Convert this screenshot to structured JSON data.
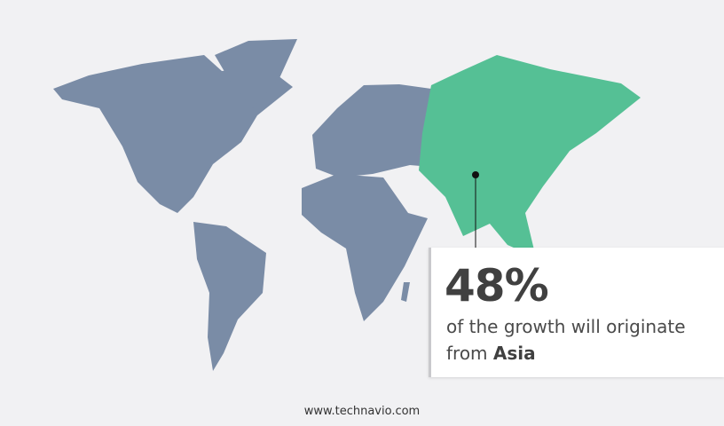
{
  "colors": {
    "background": "#f1f1f3",
    "land": "#7a8ca6",
    "highlight": "#55c095",
    "text": "#404040"
  },
  "callout": {
    "value": "48%",
    "text": "of the growth will originate",
    "from": "from",
    "region": "Asia"
  },
  "footer": {
    "site": "www.technavio.com"
  }
}
